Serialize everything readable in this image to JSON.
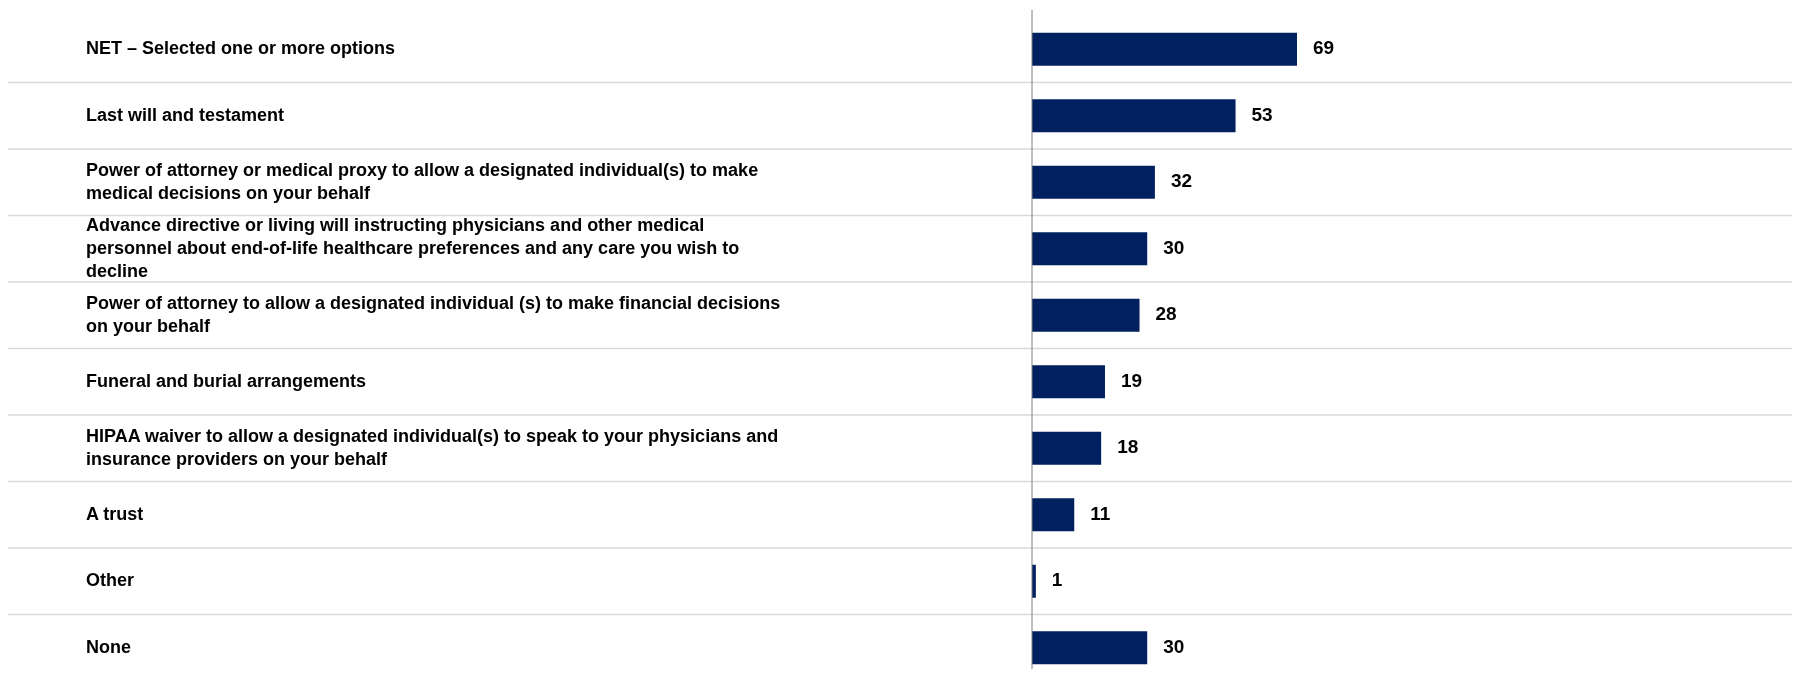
{
  "chart_data": {
    "type": "bar",
    "orientation": "horizontal",
    "relative": false,
    "data_labels": true,
    "grid": "y",
    "categories": [
      "NET – Selected one or more options",
      "Last will and testament",
      "Power of attorney or medical proxy to allow a designated individual(s) to make medical decisions on your behalf",
      "Advance directive or living will instructing physicians and other medical personnel about end-of-life healthcare preferences and any care you wish to decline",
      "Power of attorney to allow a designated individual (s) to make financial decisions on your behalf",
      "Funeral and burial arrangements",
      "HIPAA waiver to allow a designated individual(s) to speak to your physicians and insurance providers on your behalf",
      "A trust",
      "Other",
      "None"
    ],
    "values": [
      69,
      53,
      32,
      30,
      28,
      19,
      18,
      11,
      1,
      30
    ],
    "color": "#002060"
  }
}
